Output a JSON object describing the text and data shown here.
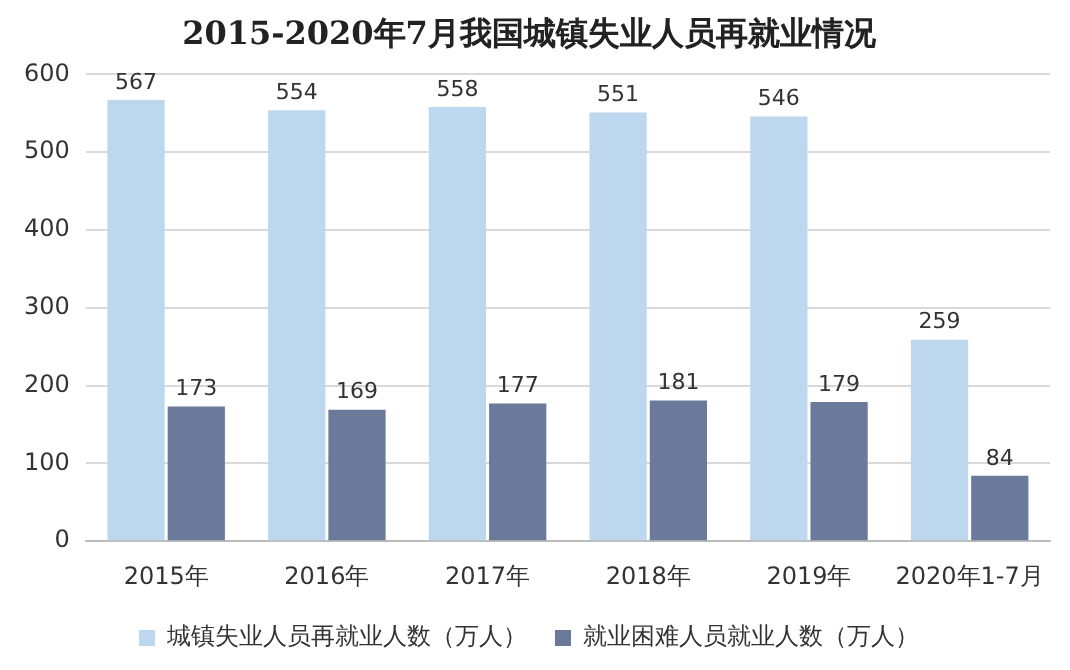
{
  "chart_data": {
    "type": "bar",
    "title": "2015-2020年7月我国城镇失业人员再就业情况",
    "categories": [
      "2015年",
      "2016年",
      "2017年",
      "2018年",
      "2019年",
      "2020年1-7月"
    ],
    "series": [
      {
        "name": "城镇失业人员再就业人数（万人）",
        "color": "#bdd7ee",
        "values": [
          567,
          554,
          558,
          551,
          546,
          259
        ]
      },
      {
        "name": "就业困难人员就业人数（万人）",
        "color": "#6b7a9b",
        "values": [
          173,
          169,
          177,
          181,
          179,
          84
        ]
      }
    ],
    "ylim": [
      0,
      600
    ],
    "yticks": [
      0,
      100,
      200,
      300,
      400,
      500,
      600
    ],
    "grid": "y",
    "legend": "bottom",
    "data_labels": true
  }
}
